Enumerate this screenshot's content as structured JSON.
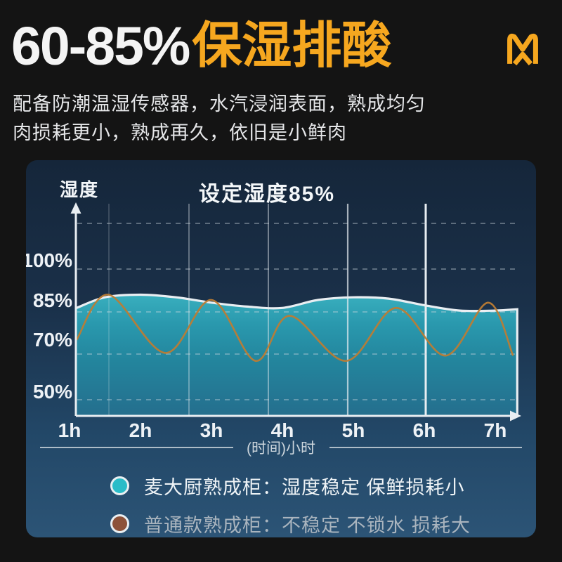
{
  "colors": {
    "accent_orange": "#f6a71f",
    "page_bg": "#141414",
    "panel_top": "#15263a",
    "panel_bottom": "#2c5476",
    "teal_series": "#2ea7b9",
    "brown_series": "#bc7c34",
    "area_edge_white": "#e9eef2",
    "legend_dot_teal": "#2abcc8",
    "legend_dot_brown": "#8d5239"
  },
  "header": {
    "range_text": "60-85%",
    "highlight_text": "保湿排酸",
    "logo_icon": "brand-m-logo",
    "subtitle_line1": "配备防潮温湿传感器，水汽浸润表面，熟成均匀",
    "subtitle_line2": "肉损耗更小，熟成再久，依旧是小鲜肉"
  },
  "chart_panel": {
    "y_axis_title": "湿度",
    "chart_title": "设定湿度85%",
    "x_axis_caption": "(时间)小时",
    "legend": {
      "item1": {
        "label": "麦大厨熟成柜：湿度稳定 保鲜损耗小"
      },
      "item2": {
        "label": "普通款熟成柜：不稳定 不锁水 损耗大"
      }
    }
  },
  "chart_data": {
    "type": "area",
    "title": "设定湿度85%",
    "ylabel": "湿度",
    "xlabel": "(时间)小时",
    "x_ticks": [
      "1h",
      "2h",
      "3h",
      "4h",
      "5h",
      "6h",
      "7h"
    ],
    "y_ticks": [
      "100%",
      "85%",
      "70%",
      "50%"
    ],
    "setpoint_pct": 85,
    "advertised_range_pct": [
      60,
      85
    ],
    "grid": "vertical solid lines + horizontal dashed lines",
    "legend_position": "bottom",
    "series": [
      {
        "name": "麦大厨熟成柜",
        "type": "area",
        "color": "#2ea7b9",
        "x_hours": [
          1.1,
          1.5,
          2.0,
          2.5,
          3.0,
          3.5,
          4.0,
          4.5,
          5.0,
          5.5,
          6.0,
          6.5,
          7.0,
          7.31
        ],
        "humidity_pct": [
          82,
          86,
          87,
          86,
          84,
          82.5,
          82,
          85,
          86,
          85.5,
          83,
          81,
          81,
          81.5
        ]
      },
      {
        "name": "普通款熟成柜",
        "type": "line",
        "color": "#bc7c34",
        "x_hours": [
          1.1,
          1.55,
          2.35,
          3.0,
          3.62,
          4.1,
          4.9,
          5.6,
          6.3,
          6.9,
          7.25
        ],
        "humidity_pct": [
          70,
          87,
          65,
          85,
          62,
          79,
          62,
          82,
          64,
          84,
          64
        ]
      }
    ]
  }
}
